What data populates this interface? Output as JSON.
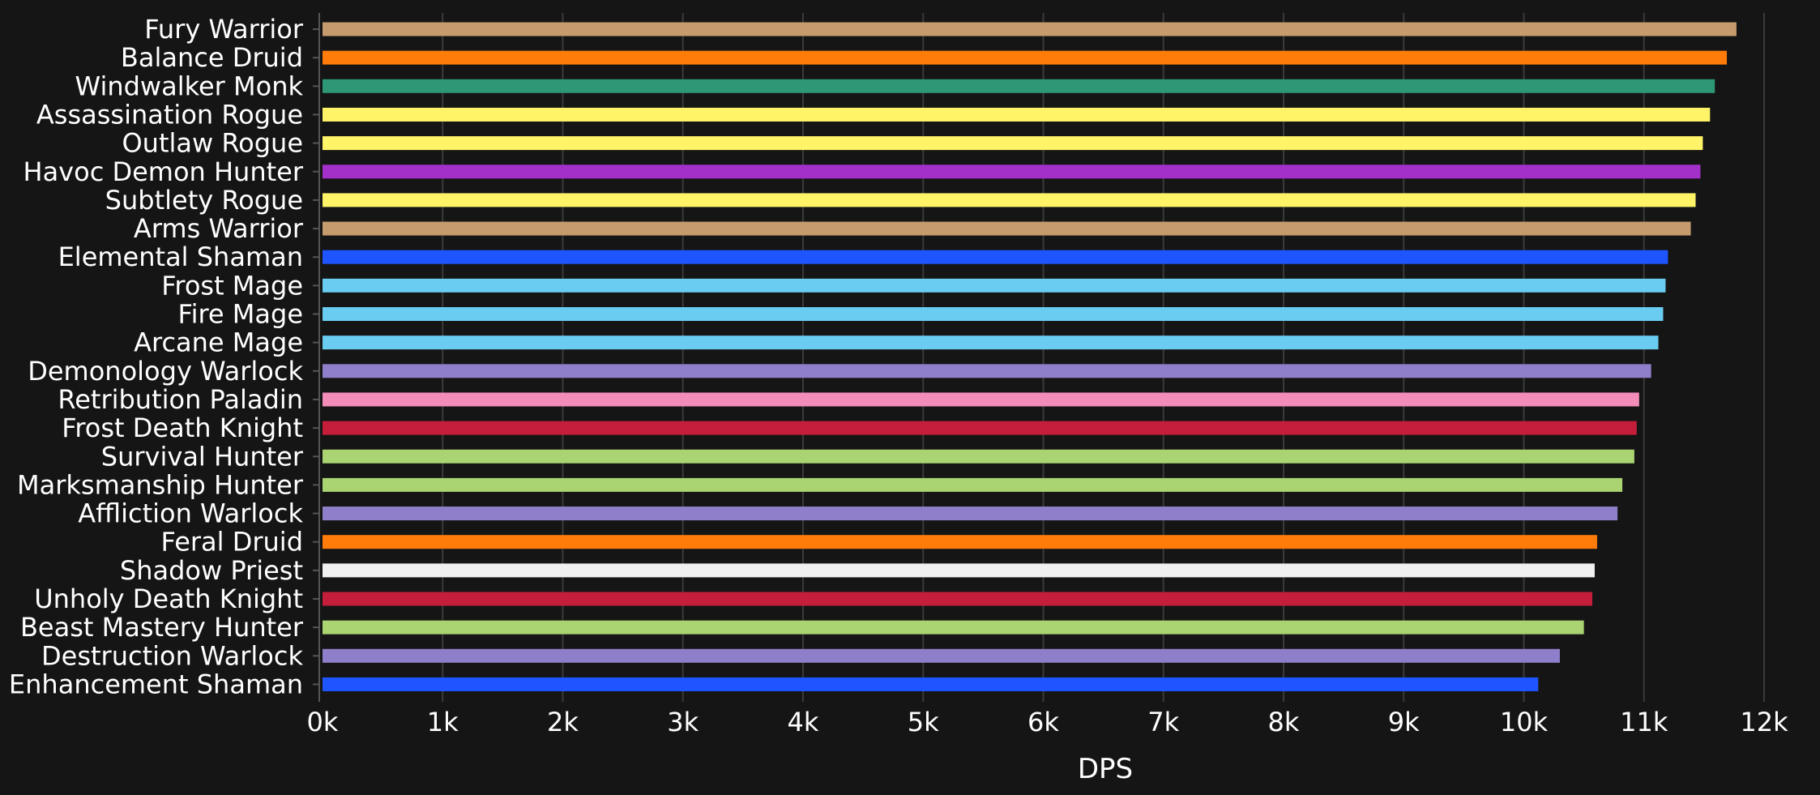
{
  "chart_data": {
    "type": "bar",
    "orientation": "horizontal",
    "xlabel": "DPS",
    "ylabel": "",
    "xlim": [
      0,
      12000
    ],
    "grid": true,
    "legend": "none",
    "background_color": "#151515",
    "grid_color": "#3a3a3a",
    "text_color": "#ffffff",
    "x_ticks": [
      {
        "value": 0,
        "label": "0k"
      },
      {
        "value": 1000,
        "label": "1k"
      },
      {
        "value": 2000,
        "label": "2k"
      },
      {
        "value": 3000,
        "label": "3k"
      },
      {
        "value": 4000,
        "label": "4k"
      },
      {
        "value": 5000,
        "label": "5k"
      },
      {
        "value": 6000,
        "label": "6k"
      },
      {
        "value": 7000,
        "label": "7k"
      },
      {
        "value": 8000,
        "label": "8k"
      },
      {
        "value": 9000,
        "label": "9k"
      },
      {
        "value": 10000,
        "label": "10k"
      },
      {
        "value": 11000,
        "label": "11k"
      },
      {
        "value": 12000,
        "label": "12k"
      }
    ],
    "bars": [
      {
        "name": "Fury Warrior",
        "value": 11770,
        "color": "#C69B6D"
      },
      {
        "name": "Balance Druid",
        "value": 11690,
        "color": "#FF7C0A"
      },
      {
        "name": "Windwalker Monk",
        "value": 11590,
        "color": "#2E9876"
      },
      {
        "name": "Assassination Rogue",
        "value": 11550,
        "color": "#FFF468"
      },
      {
        "name": "Outlaw Rogue",
        "value": 11490,
        "color": "#FFF468"
      },
      {
        "name": "Havoc Demon Hunter",
        "value": 11470,
        "color": "#A330C9"
      },
      {
        "name": "Subtlety Rogue",
        "value": 11430,
        "color": "#FFF468"
      },
      {
        "name": "Arms Warrior",
        "value": 11390,
        "color": "#C69B6D"
      },
      {
        "name": "Elemental Shaman",
        "value": 11200,
        "color": "#1F55FF"
      },
      {
        "name": "Frost Mage",
        "value": 11180,
        "color": "#69CCF0"
      },
      {
        "name": "Fire Mage",
        "value": 11160,
        "color": "#69CCF0"
      },
      {
        "name": "Arcane Mage",
        "value": 11120,
        "color": "#69CCF0"
      },
      {
        "name": "Demonology Warlock",
        "value": 11060,
        "color": "#8F7FCA"
      },
      {
        "name": "Retribution Paladin",
        "value": 10960,
        "color": "#F48CBA"
      },
      {
        "name": "Frost Death Knight",
        "value": 10940,
        "color": "#C41E3A"
      },
      {
        "name": "Survival Hunter",
        "value": 10920,
        "color": "#AAD372"
      },
      {
        "name": "Marksmanship Hunter",
        "value": 10820,
        "color": "#AAD372"
      },
      {
        "name": "Affliction Warlock",
        "value": 10780,
        "color": "#8F7FCA"
      },
      {
        "name": "Feral Druid",
        "value": 10610,
        "color": "#FF7C0A"
      },
      {
        "name": "Shadow Priest",
        "value": 10590,
        "color": "#F0F0F0"
      },
      {
        "name": "Unholy Death Knight",
        "value": 10570,
        "color": "#C41E3A"
      },
      {
        "name": "Beast Mastery Hunter",
        "value": 10500,
        "color": "#AAD372"
      },
      {
        "name": "Destruction Warlock",
        "value": 10300,
        "color": "#8F7FCA"
      },
      {
        "name": "Enhancement Shaman",
        "value": 10120,
        "color": "#1F55FF"
      }
    ]
  }
}
